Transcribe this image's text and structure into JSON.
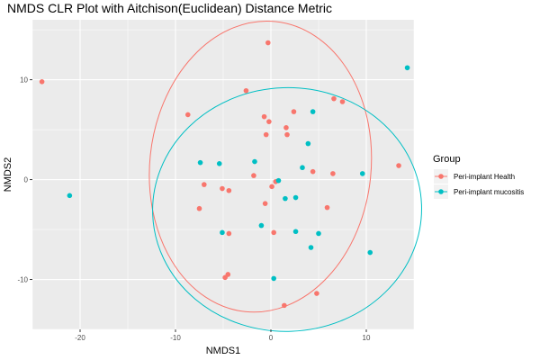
{
  "chart_data": {
    "type": "scatter",
    "title": "NMDS CLR Plot with Aitchison(Euclidean) Distance Metric",
    "xlabel": "NMDS1",
    "ylabel": "NMDS2",
    "xlim": [
      -25,
      15
    ],
    "ylim": [
      -15,
      16
    ],
    "x_ticks": [
      -20,
      -10,
      0,
      10
    ],
    "y_ticks": [
      -10,
      0,
      10
    ],
    "x_tick_labels": [
      "-20",
      "-10",
      "0",
      "10"
    ],
    "y_tick_labels": [
      "-10",
      "0",
      "10"
    ],
    "grid": true,
    "legend": {
      "title": "Group",
      "position": "right"
    },
    "series": [
      {
        "name": "Peri-implant Health",
        "color": "#F8766D",
        "points": [
          [
            -24,
            9.8
          ],
          [
            -0.3,
            13.7
          ],
          [
            -2.6,
            8.9
          ],
          [
            -8.7,
            6.5
          ],
          [
            -0.7,
            6.3
          ],
          [
            -0.2,
            5.8
          ],
          [
            -0.5,
            4.5
          ],
          [
            1.6,
            5.2
          ],
          [
            2.4,
            6.8
          ],
          [
            6.6,
            8.1
          ],
          [
            7.5,
            7.8
          ],
          [
            1.7,
            4.5
          ],
          [
            13.4,
            1.4
          ],
          [
            4.4,
            0.8
          ],
          [
            6.5,
            0.6
          ],
          [
            -1.8,
            0.4
          ],
          [
            0.5,
            -0.2
          ],
          [
            0.1,
            -0.7
          ],
          [
            -7,
            -0.5
          ],
          [
            -5.1,
            -0.9
          ],
          [
            -4.4,
            -1.1
          ],
          [
            -0.6,
            -2.4
          ],
          [
            5.9,
            -2.8
          ],
          [
            -7.5,
            -2.9
          ],
          [
            0.3,
            -5.3
          ],
          [
            -4.4,
            -5.4
          ],
          [
            -4.5,
            -9.5
          ],
          [
            -4.8,
            -9.8
          ],
          [
            4.8,
            -11.4
          ],
          [
            1.4,
            -12.6
          ]
        ]
      },
      {
        "name": "Peri-implant mucositis",
        "color": "#00BFC4",
        "points": [
          [
            14.3,
            11.2
          ],
          [
            4.4,
            6.8
          ],
          [
            3.9,
            3.6
          ],
          [
            -7.4,
            1.7
          ],
          [
            -5.4,
            1.6
          ],
          [
            -1.7,
            1.8
          ],
          [
            3.3,
            1.2
          ],
          [
            9.6,
            0.6
          ],
          [
            0.8,
            -0.1
          ],
          [
            2.6,
            -1.8
          ],
          [
            1.5,
            -1.9
          ],
          [
            -21.1,
            -1.6
          ],
          [
            -1,
            -4.6
          ],
          [
            -5.1,
            -5.3
          ],
          [
            2.6,
            -5.2
          ],
          [
            5,
            -5.4
          ],
          [
            4.2,
            -6.8
          ],
          [
            10.4,
            -7.3
          ],
          [
            0.3,
            -9.9
          ]
        ]
      }
    ],
    "ellipses": [
      {
        "series": "Peri-implant Health",
        "color": "#F8766D",
        "center": [
          -1.1,
          1.3
        ],
        "rx": 11.6,
        "ry": 14.6,
        "rotation_deg": 6
      },
      {
        "series": "Peri-implant mucositis",
        "color": "#00BFC4",
        "center": [
          1.7,
          -3.0
        ],
        "rx": 14.1,
        "ry": 12.2,
        "rotation_deg": -2
      }
    ]
  }
}
